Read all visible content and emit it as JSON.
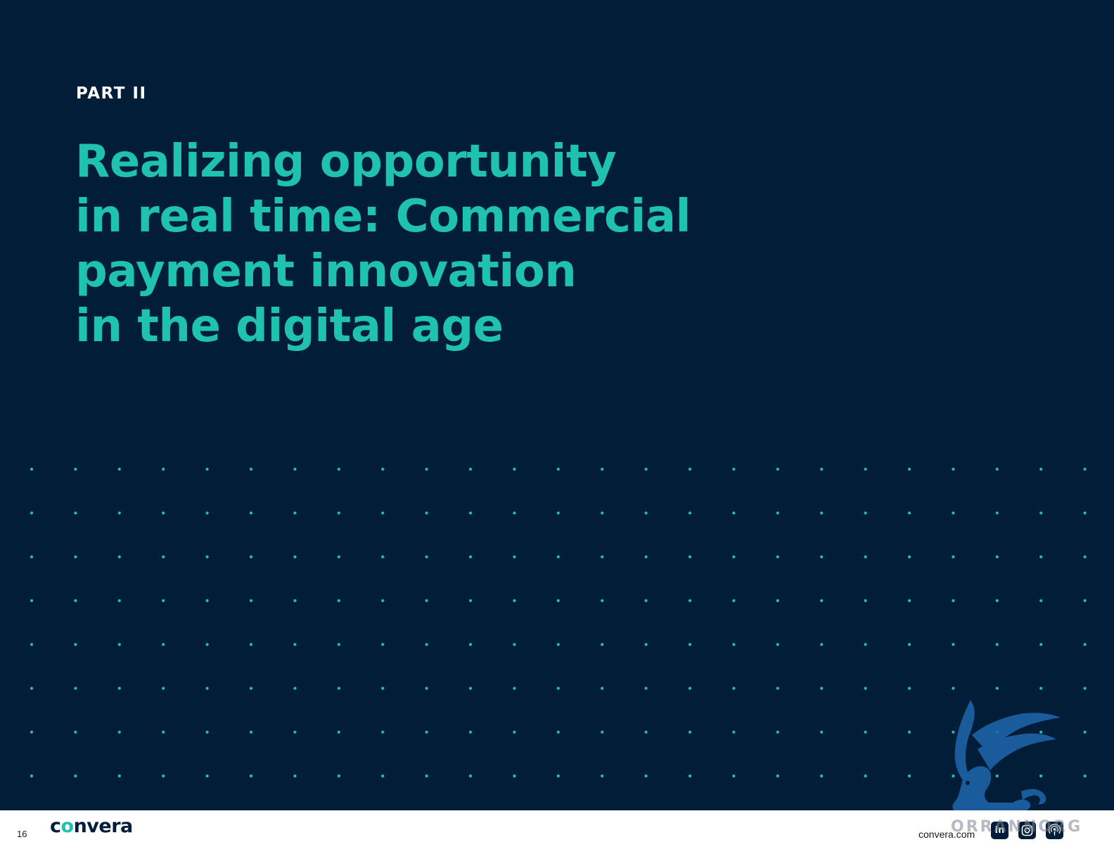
{
  "page": {
    "section_label": "PART II",
    "title_lines": [
      "Realizing opportunity",
      "in real time: Commercial",
      "payment innovation",
      "in the digital age"
    ]
  },
  "footer": {
    "page_number": "16",
    "brand_name_prefix": "c",
    "brand_name_accent": "o",
    "brand_name_suffix": "nvera",
    "website": "convera.com",
    "social_icons": [
      "linkedin-icon",
      "instagram-icon",
      "podcast-icon"
    ],
    "linkedin_label": "in"
  },
  "watermark": {
    "text": "ORRANNORG"
  },
  "colors": {
    "background": "#011d37",
    "accent": "#1fc2ae",
    "label": "#ffffff",
    "footer_bg": "#ffffff"
  }
}
